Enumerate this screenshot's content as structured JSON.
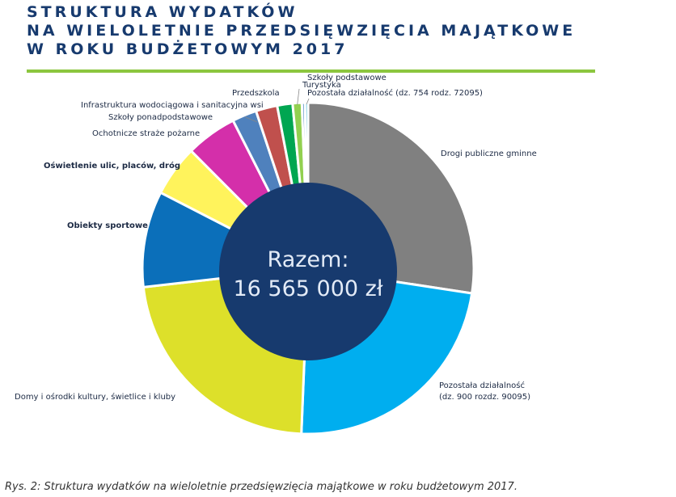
{
  "title_lines": [
    "STRUKTURA WYDATKÓW",
    "NA WIELOLETNIE PRZEDSIĘWZIĘCIA MAJĄTKOWE",
    "W ROKU BUDŻETOWYM 2017"
  ],
  "caption": "Rys. 2: Struktura wydatków na wieloletnie przedsięwzięcia majątkowe w roku budżetowym 2017.",
  "center_label": {
    "line1": "Razem:",
    "line2": "16 565 000 zł"
  },
  "colors": {
    "title": "#173a6e",
    "rule": "#8cc63f",
    "center": "#173a6e"
  },
  "chart_data": {
    "type": "pie",
    "title": "STRUKTURA WYDATKÓW NA WIELOLETNIE PRZEDSIĘWZIĘCIA MAJĄTKOWE W ROKU BUDŻETOWYM 2017",
    "total": "16 565 000 zł",
    "unit": "percent (estimated)",
    "legend": "labels beside slices",
    "slices": [
      {
        "label": "Drogi publiczne gminne",
        "label_lines": [
          "Drogi publiczne gminne"
        ],
        "value": 27.5,
        "color": "#808080",
        "bold": false
      },
      {
        "label": "Pozostała działalność (dz. 900 rozdz. 90095)",
        "label_lines": [
          "Pozostała działalność",
          "(dz. 900 rozdz. 90095)"
        ],
        "value": 23.3,
        "color": "#00aeef",
        "bold": false
      },
      {
        "label": "Domy i ośrodki kultury, świetlice i kluby",
        "label_lines": [
          "Domy i ośrodki kultury, świetlice i kluby"
        ],
        "value": 22.6,
        "color": "#dde02a",
        "bold": false
      },
      {
        "label": "Obiekty sportowe",
        "label_lines": [
          "Obiekty sportowe"
        ],
        "value": 9.4,
        "color": "#0b6fba",
        "bold": true
      },
      {
        "label": "Oświetlenie ulic, placów, dróg",
        "label_lines": [
          "Oświetlenie ulic, placów, dróg"
        ],
        "value": 5.0,
        "color": "#fff35c",
        "bold": true
      },
      {
        "label": "Ochotnicze straże pożarne",
        "label_lines": [
          "Ochotnicze straże pożarne"
        ],
        "value": 5.0,
        "color": "#d42faa",
        "bold": false
      },
      {
        "label": "Szkoły ponadpodstawowe",
        "label_lines": [
          "Szkoły ponadpodstawowe"
        ],
        "value": 2.4,
        "color": "#4f81bd",
        "bold": false
      },
      {
        "label": "Infrastruktura wodociągowa i sanitacyjna wsi",
        "label_lines": [
          "Infrastruktura wodociągowa i sanitacyjna wsi"
        ],
        "value": 2.1,
        "color": "#c0504d",
        "bold": false
      },
      {
        "label": "Przedszkola",
        "label_lines": [
          "Przedszkola"
        ],
        "value": 1.5,
        "color": "#00a651",
        "bold": false
      },
      {
        "label": "Szkoły podstawowe",
        "label_lines": [
          "Szkoły podstawowe"
        ],
        "value": 0.9,
        "color": "#92d050",
        "bold": false
      },
      {
        "label": "Turystyka",
        "label_lines": [
          "Turystyka"
        ],
        "value": 0.3,
        "color": "#2e75b6",
        "bold": false
      },
      {
        "label": "Pozostała działalność (dz. 754 rodz. 72095)",
        "label_lines": [
          "Pozostała działalność (dz. 754 rodz. 72095)"
        ],
        "value": 0.3,
        "color": "#5bc0de",
        "bold": false
      }
    ]
  }
}
